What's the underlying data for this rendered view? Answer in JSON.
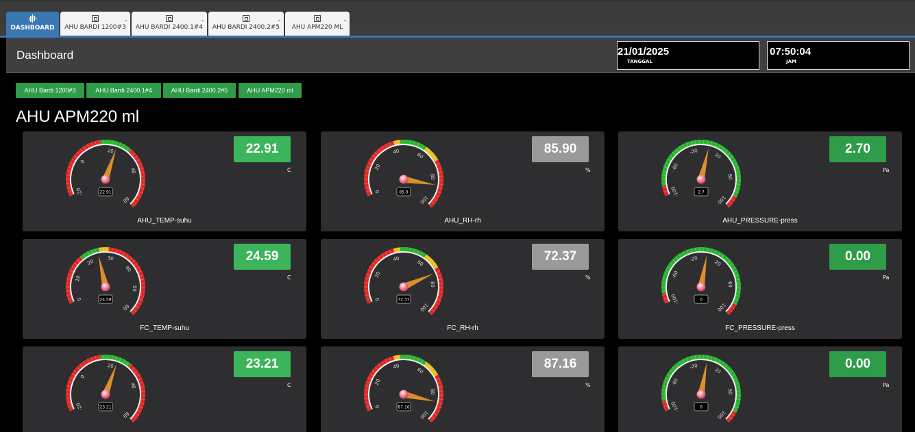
{
  "topbar": {
    "tabs": [
      {
        "label": "DASHBOARD",
        "icon": "waveform-icon",
        "active": true
      },
      {
        "label": "AHU BARDI 1200#3",
        "icon": "board-icon"
      },
      {
        "label": "AHU BARDI 2400.1#4",
        "icon": "board-icon"
      },
      {
        "label": "AHU BARDI 2400.2#5",
        "icon": "board-icon"
      },
      {
        "label": "AHU APM220 ML",
        "icon": "board-icon"
      }
    ]
  },
  "header": {
    "title": "Dashboard",
    "date": {
      "value": "21/01/2025",
      "caption": "TANGGAL"
    },
    "time": {
      "value": "07:50:04",
      "caption": "JAM"
    }
  },
  "nav_buttons": [
    "AHU Bardi 1200#3",
    "AHU Bardi 2400.1#4",
    "AHU Bardi 2400.2#5",
    "AHU APM220 ml"
  ],
  "page_heading": "AHU APM220 ml",
  "colors": {
    "accent": "#3a77b3",
    "ok_green": "#3cb55a",
    "dark_green": "#2e9c48",
    "neutral_grey": "#9a9a9a",
    "gauge_red": "#e02828",
    "gauge_green": "#27b42e",
    "needle": "#d9902a"
  },
  "cards": [
    {
      "name": "AHU_TEMP-suhu",
      "value": "22.91",
      "unit": "C",
      "box_color": "green",
      "gauge": {
        "type": "temp1",
        "ticks": [
          "-20",
          "0",
          "20",
          "40",
          "60"
        ],
        "needle_value": 22.91,
        "min": -20,
        "max": 60,
        "readout": "22.91"
      }
    },
    {
      "name": "AHU_RH-rh",
      "value": "85.90",
      "unit": "%",
      "box_color": "grey",
      "gauge": {
        "type": "rh",
        "ticks": [
          "0",
          "20",
          "40",
          "60",
          "80",
          "100"
        ],
        "needle_value": 85.9,
        "min": 0,
        "max": 100,
        "readout": "85.9"
      }
    },
    {
      "name": "AHU_PRESSURE-press",
      "value": "2.70",
      "unit": "Pa",
      "box_color": "darkgreen",
      "gauge": {
        "type": "press",
        "ticks": [
          "-100",
          "-60",
          "-20",
          "20",
          "60",
          "100"
        ],
        "needle_value": 2.7,
        "min": -100,
        "max": 100,
        "readout": "2.7"
      }
    },
    {
      "name": "FC_TEMP-suhu",
      "value": "24.59",
      "unit": "C",
      "box_color": "green",
      "gauge": {
        "type": "temp2",
        "ticks": [
          "0",
          "10",
          "20",
          "30",
          "40",
          "50",
          "60"
        ],
        "needle_value": 24.59,
        "min": 0,
        "max": 60,
        "readout": "24.59"
      }
    },
    {
      "name": "FC_RH-rh",
      "value": "72.37",
      "unit": "%",
      "box_color": "grey",
      "gauge": {
        "type": "rh",
        "ticks": [
          "0",
          "20",
          "40",
          "60",
          "80",
          "100"
        ],
        "needle_value": 72.37,
        "min": 0,
        "max": 100,
        "readout": "72.37"
      }
    },
    {
      "name": "FC_PRESSURE-press",
      "value": "0.00",
      "unit": "Pa",
      "box_color": "darkgreen",
      "gauge": {
        "type": "press",
        "ticks": [
          "-100",
          "-60",
          "-20",
          "20",
          "60",
          "100"
        ],
        "needle_value": 0,
        "min": -100,
        "max": 100,
        "readout": "0"
      }
    },
    {
      "name": "",
      "value": "23.21",
      "unit": "C",
      "box_color": "green",
      "gauge": {
        "type": "temp1",
        "ticks": [
          "-20",
          "0",
          "20",
          "40",
          "60"
        ],
        "needle_value": 23.21,
        "min": -20,
        "max": 60,
        "readout": "23.21"
      }
    },
    {
      "name": "",
      "value": "87.16",
      "unit": "%",
      "box_color": "grey",
      "gauge": {
        "type": "rh",
        "ticks": [
          "0",
          "20",
          "40",
          "60",
          "80",
          "100"
        ],
        "needle_value": 87.16,
        "min": 0,
        "max": 100,
        "readout": "87.16"
      }
    },
    {
      "name": "",
      "value": "0.00",
      "unit": "Pa",
      "box_color": "darkgreen",
      "gauge": {
        "type": "press",
        "ticks": [
          "-100",
          "-60",
          "-20",
          "20",
          "60",
          "100"
        ],
        "needle_value": 0,
        "min": -100,
        "max": 100,
        "readout": "0"
      }
    }
  ]
}
